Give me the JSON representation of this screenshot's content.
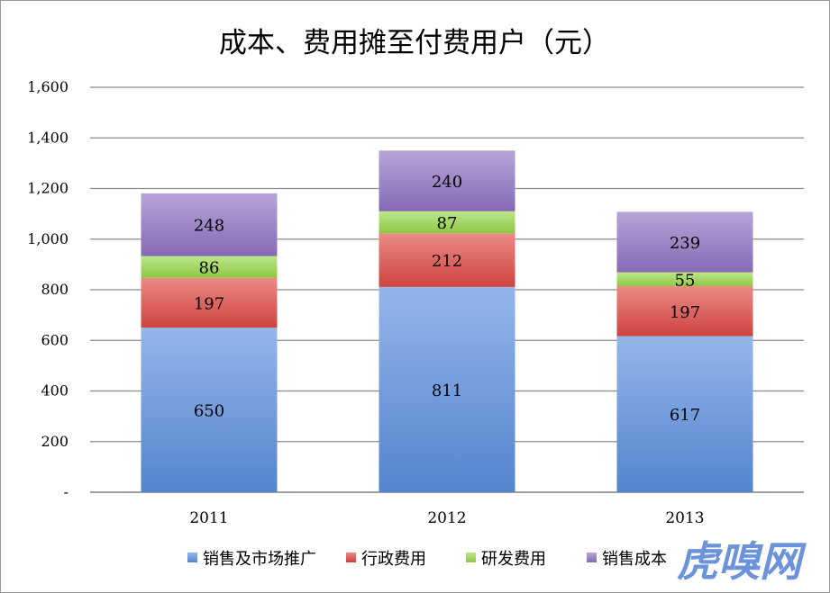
{
  "chart_data": {
    "type": "bar",
    "stacked": true,
    "title": "成本、费用摊至付费用户（元）",
    "xlabel": "",
    "ylabel": "",
    "categories": [
      "2011",
      "2012",
      "2013"
    ],
    "ylim": [
      0,
      1600
    ],
    "yticks": [
      {
        "value": 0,
        "label": "-"
      },
      {
        "value": 200,
        "label": "200"
      },
      {
        "value": 400,
        "label": "400"
      },
      {
        "value": 600,
        "label": "600"
      },
      {
        "value": 800,
        "label": "800"
      },
      {
        "value": 1000,
        "label": "1,000"
      },
      {
        "value": 1200,
        "label": "1,200"
      },
      {
        "value": 1400,
        "label": "1,400"
      },
      {
        "value": 1600,
        "label": "1,600"
      }
    ],
    "grid": true,
    "legend_position": "bottom",
    "series": [
      {
        "name": "销售及市场推广",
        "values": [
          650,
          811,
          617
        ],
        "color": "#5b8fe0"
      },
      {
        "name": "行政费用",
        "values": [
          197,
          212,
          197
        ],
        "color": "#e04a44"
      },
      {
        "name": "研发费用",
        "values": [
          86,
          87,
          55
        ],
        "color": "#9ad84a"
      },
      {
        "name": "销售成本",
        "values": [
          248,
          240,
          239
        ],
        "color": "#9173c4"
      }
    ]
  },
  "watermark": "虎嗅网"
}
